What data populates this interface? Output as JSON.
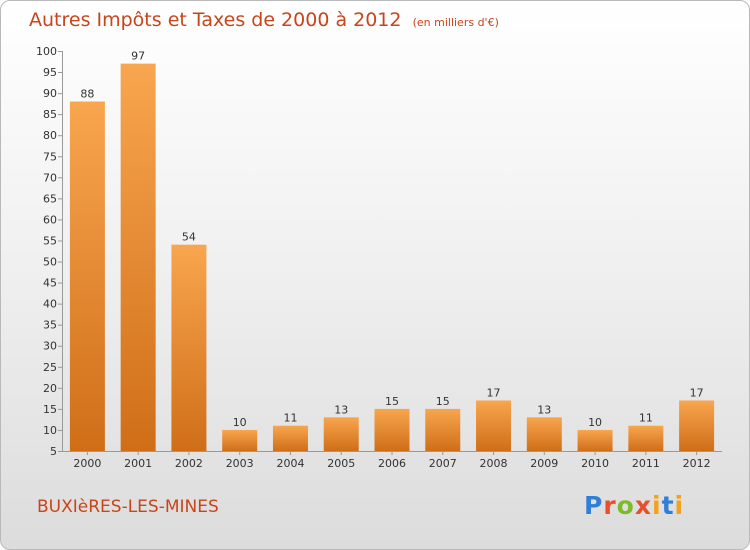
{
  "header": {
    "title": "Autres Impôts et Taxes de 2000 à 2012",
    "unit": "(en milliers d'€)"
  },
  "footer": {
    "town": "BUXIèRES-LES-MINES",
    "logo": "Proxiti",
    "logo_colors": [
      "#2f7fd8",
      "#e8502a",
      "#7dbb2b",
      "#e8502a",
      "#f2a21b",
      "#2f7fd8",
      "#f2a21b"
    ]
  },
  "colors": {
    "bar_light": "#f8a64f",
    "bar_dark": "#d06e18",
    "text_accent": "#c8451a"
  },
  "chart_data": {
    "type": "bar",
    "title": "Autres Impôts et Taxes de 2000 à 2012",
    "subtitle": "(en milliers d'€)",
    "categories": [
      "2000",
      "2001",
      "2002",
      "2003",
      "2004",
      "2005",
      "2006",
      "2007",
      "2008",
      "2009",
      "2010",
      "2011",
      "2012"
    ],
    "values": [
      88,
      97,
      54,
      10,
      11,
      13,
      15,
      15,
      17,
      13,
      10,
      11,
      17
    ],
    "ylim": [
      5,
      100
    ],
    "yticks": [
      5,
      10,
      15,
      20,
      25,
      30,
      35,
      40,
      45,
      50,
      55,
      60,
      65,
      70,
      75,
      80,
      85,
      90,
      95,
      100
    ],
    "grid": false
  }
}
